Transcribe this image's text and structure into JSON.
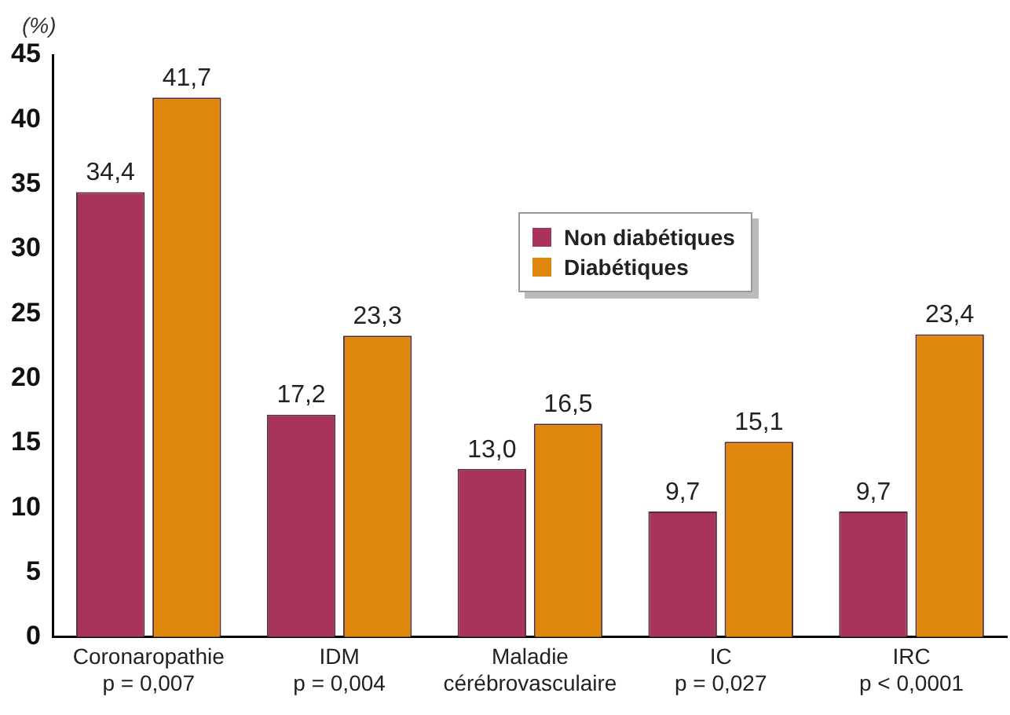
{
  "chart_data": {
    "type": "bar",
    "ylabel": "(%)",
    "categories": [
      "Coronaropathie\np = 0,007",
      "IDM\np = 0,004",
      "Maladie\ncérébrovasculaire",
      "IC\np = 0,027",
      "IRC\np < 0,0001"
    ],
    "series": [
      {
        "name": "Non diabétiques",
        "color": "#a8345c",
        "values": [
          34.4,
          17.2,
          13.0,
          9.7,
          9.7
        ],
        "value_labels": [
          "34,4",
          "17,2",
          "13,0",
          "9,7",
          "9,7"
        ]
      },
      {
        "name": "Diabétiques",
        "color": "#e0870e",
        "values": [
          41.7,
          23.3,
          16.5,
          15.1,
          23.4
        ],
        "value_labels": [
          "41,7",
          "23,3",
          "16,5",
          "15,1",
          "23,4"
        ]
      }
    ],
    "ylim": [
      0,
      45
    ],
    "yticks": [
      0,
      5,
      10,
      15,
      20,
      25,
      30,
      35,
      40,
      45
    ],
    "grid": false,
    "legend": "top right"
  }
}
